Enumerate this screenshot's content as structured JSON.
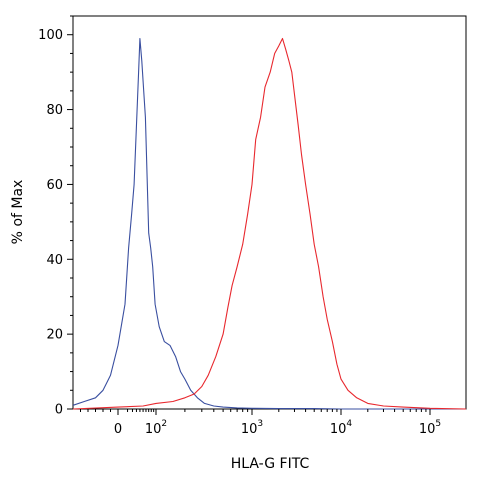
{
  "chart_data": {
    "type": "line",
    "title": "",
    "xlabel": "HLA-G  FITC",
    "ylabel": "% of Max",
    "x_scale": "biexponential",
    "xlim": [
      -60,
      300000
    ],
    "ylim": [
      0,
      105
    ],
    "grid": false,
    "legend": "none",
    "x_ticks": [
      {
        "value": 0,
        "base": "0",
        "exp": ""
      },
      {
        "value": 100,
        "base": "10",
        "exp": "2"
      },
      {
        "value": 1000,
        "base": "10",
        "exp": "3"
      },
      {
        "value": 10000,
        "base": "10",
        "exp": "4"
      },
      {
        "value": 100000,
        "base": "10",
        "exp": "5"
      }
    ],
    "y_ticks": [
      {
        "value": 0,
        "label": "0"
      },
      {
        "value": 20,
        "label": "20"
      },
      {
        "value": 40,
        "label": "40"
      },
      {
        "value": 60,
        "label": "60"
      },
      {
        "value": 80,
        "label": "80"
      },
      {
        "value": 100,
        "label": "100"
      }
    ],
    "series": [
      {
        "color": "#3a4fa0",
        "x": [
          -60,
          -45,
          -30,
          -20,
          -10,
          0,
          6,
          12,
          18,
          24,
          30,
          36,
          40,
          46,
          52,
          58,
          64,
          70,
          78,
          86,
          96,
          108,
          122,
          140,
          160,
          180,
          200,
          230,
          270,
          320,
          400,
          500,
          700,
          1000,
          2000,
          5000,
          10000,
          300000
        ],
        "y": [
          1,
          2,
          3,
          5,
          9,
          17,
          28,
          43,
          52,
          60,
          76,
          90,
          99,
          93,
          85,
          78,
          62,
          47,
          43,
          38,
          28,
          22,
          18,
          17,
          14,
          10,
          8,
          5,
          3,
          1.5,
          0.8,
          0.5,
          0.3,
          0.2,
          0.1,
          0.1,
          0,
          0
        ]
      },
      {
        "color": "#e8282e",
        "x": [
          -60,
          0,
          50,
          100,
          150,
          200,
          250,
          300,
          350,
          420,
          500,
          560,
          620,
          700,
          800,
          900,
          1000,
          1100,
          1250,
          1400,
          1600,
          1800,
          2000,
          2200,
          2400,
          2600,
          2800,
          3000,
          3300,
          3600,
          4000,
          4500,
          5000,
          5600,
          6300,
          7000,
          8000,
          9000,
          10000,
          12000,
          15000,
          20000,
          30000,
          50000,
          100000,
          300000
        ],
        "y": [
          0,
          0.5,
          0.8,
          1.5,
          2,
          3,
          4,
          6,
          9,
          14,
          20,
          27,
          33,
          38,
          44,
          52,
          60,
          72,
          78,
          86,
          90,
          95,
          97,
          99,
          96,
          93,
          90,
          84,
          76,
          68,
          60,
          52,
          44,
          38,
          30,
          24,
          18,
          12,
          8,
          5,
          3,
          1.5,
          0.8,
          0.5,
          0.2,
          0
        ]
      }
    ]
  }
}
